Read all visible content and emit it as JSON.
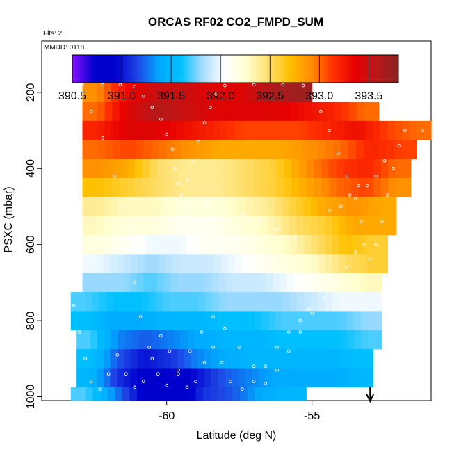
{
  "chart_data": {
    "type": "heatmap",
    "title": "ORCAS RF02 CO2_FMPD_SUM",
    "flights_label": "Flts: 2",
    "date_label": "MMDD: 0118",
    "xlabel": "Latitude (deg N)",
    "ylabel": "PSXC (mbar)",
    "xlim": [
      -64.3,
      -50.9
    ],
    "ylim": [
      1010,
      65
    ],
    "x_ticks": [
      -60,
      -55
    ],
    "x_tick_labels": [
      "-60",
      "-55"
    ],
    "y_ticks": [
      200,
      400,
      600,
      800,
      1000
    ],
    "y_tick_labels": [
      "200",
      "400",
      "600",
      "800",
      "1000"
    ],
    "colorbar": {
      "min": 390.5,
      "max": 393.8,
      "ticks": [
        390.5,
        391.0,
        391.5,
        392.0,
        392.5,
        393.0,
        393.5
      ],
      "tick_labels": [
        "390.5",
        "391.0",
        "391.5",
        "392.0",
        "392.5",
        "393.0",
        "393.5"
      ],
      "colors": [
        "#8b10ff",
        "#0000cd",
        "#0000cd",
        "#1e46e6",
        "#00aaff",
        "#00c0ff",
        "#a8dcff",
        "#ffffff",
        "#ffffd0",
        "#ffe070",
        "#ffc000",
        "#ff8c00",
        "#ff3000",
        "#e80000",
        "#b81818",
        "#8b2323"
      ]
    },
    "pressure_bands": [
      {
        "p": [
          175,
          225
        ],
        "lat": [
          -62.9,
          -55.0
        ],
        "values": [
          392.9,
          393.3,
          393.5,
          393.5,
          393.4,
          393.4,
          393.6,
          393.7
        ]
      },
      {
        "p": [
          225,
          275
        ],
        "lat": [
          -62.9,
          -52.7
        ],
        "values": [
          393.0,
          393.4,
          393.6,
          393.5,
          393.4,
          393.4,
          393.4,
          393.3,
          393.2,
          393.0
        ]
      },
      {
        "p": [
          275,
          325
        ],
        "lat": [
          -62.9,
          -50.9
        ],
        "values": [
          393.2,
          393.4,
          393.4,
          393.3,
          393.2,
          393.1,
          393.1,
          393.1,
          393.2,
          393.3,
          393.1,
          393.0
        ]
      },
      {
        "p": [
          325,
          375
        ],
        "lat": [
          -62.9,
          -51.4
        ],
        "values": [
          393.0,
          393.1,
          393.0,
          392.9,
          392.8,
          392.8,
          392.8,
          392.9,
          393.0,
          393.2,
          393.1
        ]
      },
      {
        "p": [
          375,
          425
        ],
        "lat": [
          -62.9,
          -51.6
        ],
        "values": [
          392.9,
          392.8,
          392.5,
          392.4,
          392.4,
          392.5,
          392.6,
          392.9,
          393.1,
          393.2,
          393.0
        ]
      },
      {
        "p": [
          425,
          475
        ],
        "lat": [
          -62.9,
          -51.6
        ],
        "values": [
          392.7,
          392.6,
          392.5,
          392.4,
          392.4,
          392.5,
          392.6,
          392.8,
          393.0,
          393.1,
          392.9
        ]
      },
      {
        "p": [
          475,
          525
        ],
        "lat": [
          -62.9,
          -52.1
        ],
        "values": [
          392.4,
          392.3,
          392.3,
          392.2,
          392.2,
          392.3,
          392.4,
          392.6,
          392.8,
          392.9,
          392.8
        ]
      },
      {
        "p": [
          525,
          575
        ],
        "lat": [
          -62.9,
          -52.1
        ],
        "values": [
          392.3,
          392.2,
          392.2,
          392.1,
          392.1,
          392.2,
          392.3,
          392.5,
          392.6,
          392.8,
          392.8
        ]
      },
      {
        "p": [
          575,
          625
        ],
        "lat": [
          -62.9,
          -52.4
        ],
        "values": [
          392.2,
          392.1,
          392.0,
          392.0,
          392.1,
          392.1,
          392.2,
          392.3,
          392.5,
          392.7,
          392.6
        ]
      },
      {
        "p": [
          625,
          675
        ],
        "lat": [
          -62.9,
          -52.4
        ],
        "values": [
          392.0,
          391.9,
          391.8,
          391.9,
          391.9,
          392.0,
          392.1,
          392.2,
          392.3,
          392.5,
          392.6
        ]
      },
      {
        "p": [
          675,
          725
        ],
        "lat": [
          -62.9,
          -52.6
        ],
        "values": [
          391.8,
          391.8,
          391.7,
          391.8,
          391.8,
          391.9,
          391.9,
          392.0,
          392.1,
          392.2,
          392.3
        ]
      },
      {
        "p": [
          725,
          775
        ],
        "lat": [
          -63.3,
          -52.6
        ],
        "values": [
          391.7,
          391.6,
          391.6,
          391.7,
          391.7,
          391.8,
          391.8,
          391.8,
          391.9,
          392.0,
          392.0
        ]
      },
      {
        "p": [
          775,
          825
        ],
        "lat": [
          -63.3,
          -52.6
        ],
        "values": [
          391.6,
          391.4,
          391.4,
          391.5,
          391.5,
          391.6,
          391.6,
          391.7,
          391.7,
          391.7,
          391.8
        ]
      },
      {
        "p": [
          825,
          875
        ],
        "lat": [
          -63.1,
          -52.6
        ],
        "values": [
          391.7,
          391.3,
          391.2,
          391.3,
          391.4,
          391.5,
          391.5,
          391.6,
          391.6,
          391.6,
          391.7
        ]
      },
      {
        "p": [
          875,
          925
        ],
        "lat": [
          -63.1,
          -52.9
        ],
        "values": [
          391.6,
          391.2,
          391.0,
          391.1,
          391.3,
          391.4,
          391.5,
          391.5,
          391.5,
          391.5,
          391.6
        ]
      },
      {
        "p": [
          925,
          975
        ],
        "lat": [
          -63.1,
          -52.9
        ],
        "values": [
          391.5,
          391.1,
          390.9,
          390.8,
          391.0,
          391.2,
          391.3,
          391.4,
          391.4,
          391.4,
          391.5
        ]
      },
      {
        "p": [
          975,
          1010
        ],
        "lat": [
          -63.3,
          -55.2
        ],
        "values": [
          391.7,
          391.3,
          390.9,
          390.7,
          391.1,
          391.2,
          391.4,
          391.5
        ]
      }
    ],
    "flight_track": [
      [
        -62.9,
        180
      ],
      [
        -62.2,
        180
      ],
      [
        -61.6,
        180
      ],
      [
        -61.1,
        185
      ],
      [
        -60.8,
        210
      ],
      [
        -60.5,
        240
      ],
      [
        -60.2,
        270
      ],
      [
        -60.0,
        310
      ],
      [
        -59.8,
        350
      ],
      [
        -59.7,
        400
      ],
      [
        -59.6,
        440
      ],
      [
        -59.5,
        470
      ],
      [
        -59.3,
        430
      ],
      [
        -59.1,
        380
      ],
      [
        -58.9,
        330
      ],
      [
        -58.7,
        280
      ],
      [
        -58.5,
        240
      ],
      [
        -58.3,
        205
      ],
      [
        -58.0,
        182
      ],
      [
        -57.0,
        180
      ],
      [
        -56.0,
        180
      ],
      [
        -55.3,
        182
      ],
      [
        -55.0,
        210
      ],
      [
        -54.7,
        250
      ],
      [
        -54.4,
        300
      ],
      [
        -54.1,
        360
      ],
      [
        -53.8,
        420
      ],
      [
        -53.5,
        480
      ],
      [
        -53.3,
        540
      ],
      [
        -53.2,
        600
      ],
      [
        -53.0,
        640
      ],
      [
        -52.8,
        600
      ],
      [
        -52.6,
        540
      ],
      [
        -52.4,
        470
      ],
      [
        -52.2,
        400
      ],
      [
        -52.0,
        340
      ],
      [
        -51.8,
        300
      ],
      [
        -51.2,
        300
      ],
      [
        -62.6,
        250
      ],
      [
        -62.2,
        320
      ],
      [
        -61.8,
        420
      ],
      [
        -61.5,
        500
      ],
      [
        -61.3,
        600
      ],
      [
        -61.1,
        700
      ],
      [
        -60.9,
        790
      ],
      [
        -60.6,
        870
      ],
      [
        -60.3,
        940
      ],
      [
        -60.0,
        970
      ],
      [
        -59.6,
        930
      ],
      [
        -59.2,
        880
      ],
      [
        -58.8,
        830
      ],
      [
        -58.4,
        790
      ],
      [
        -58.0,
        820
      ],
      [
        -57.5,
        870
      ],
      [
        -57.0,
        920
      ],
      [
        -56.6,
        965
      ],
      [
        -56.2,
        930
      ],
      [
        -55.8,
        880
      ],
      [
        -55.4,
        830
      ],
      [
        -55.0,
        780
      ],
      [
        -54.6,
        740
      ],
      [
        -54.2,
        700
      ],
      [
        -53.8,
        660
      ],
      [
        -53.5,
        620
      ],
      [
        -63.2,
        760
      ],
      [
        -63.0,
        830
      ],
      [
        -62.8,
        900
      ],
      [
        -62.6,
        960
      ],
      [
        -62.3,
        980
      ],
      [
        -62.0,
        940
      ],
      [
        -61.7,
        890
      ],
      [
        -61.4,
        940
      ],
      [
        -61.1,
        975
      ],
      [
        -60.8,
        960
      ],
      [
        -60.5,
        900
      ],
      [
        -60.2,
        840
      ],
      [
        -59.9,
        880
      ],
      [
        -59.6,
        940
      ],
      [
        -59.3,
        975
      ],
      [
        -59.0,
        960
      ],
      [
        -58.7,
        910
      ],
      [
        -58.4,
        870
      ],
      [
        -58.1,
        910
      ],
      [
        -57.8,
        960
      ],
      [
        -57.4,
        980
      ],
      [
        -57.0,
        960
      ],
      [
        -56.6,
        920
      ],
      [
        -56.2,
        870
      ],
      [
        -55.8,
        830
      ],
      [
        -55.4,
        800
      ],
      [
        -55.1,
        770
      ],
      [
        -58.6,
        500
      ],
      [
        -58.0,
        510
      ],
      [
        -57.4,
        520
      ],
      [
        -56.8,
        540
      ],
      [
        -56.2,
        560
      ],
      [
        -55.6,
        580
      ],
      [
        -54.4,
        510
      ],
      [
        -54.0,
        500
      ],
      [
        -53.7,
        470
      ],
      [
        -53.4,
        445
      ],
      [
        -53.1,
        445
      ],
      [
        -52.8,
        420
      ],
      [
        -52.5,
        380
      ]
    ],
    "arrow_latitude": -53.0
  }
}
